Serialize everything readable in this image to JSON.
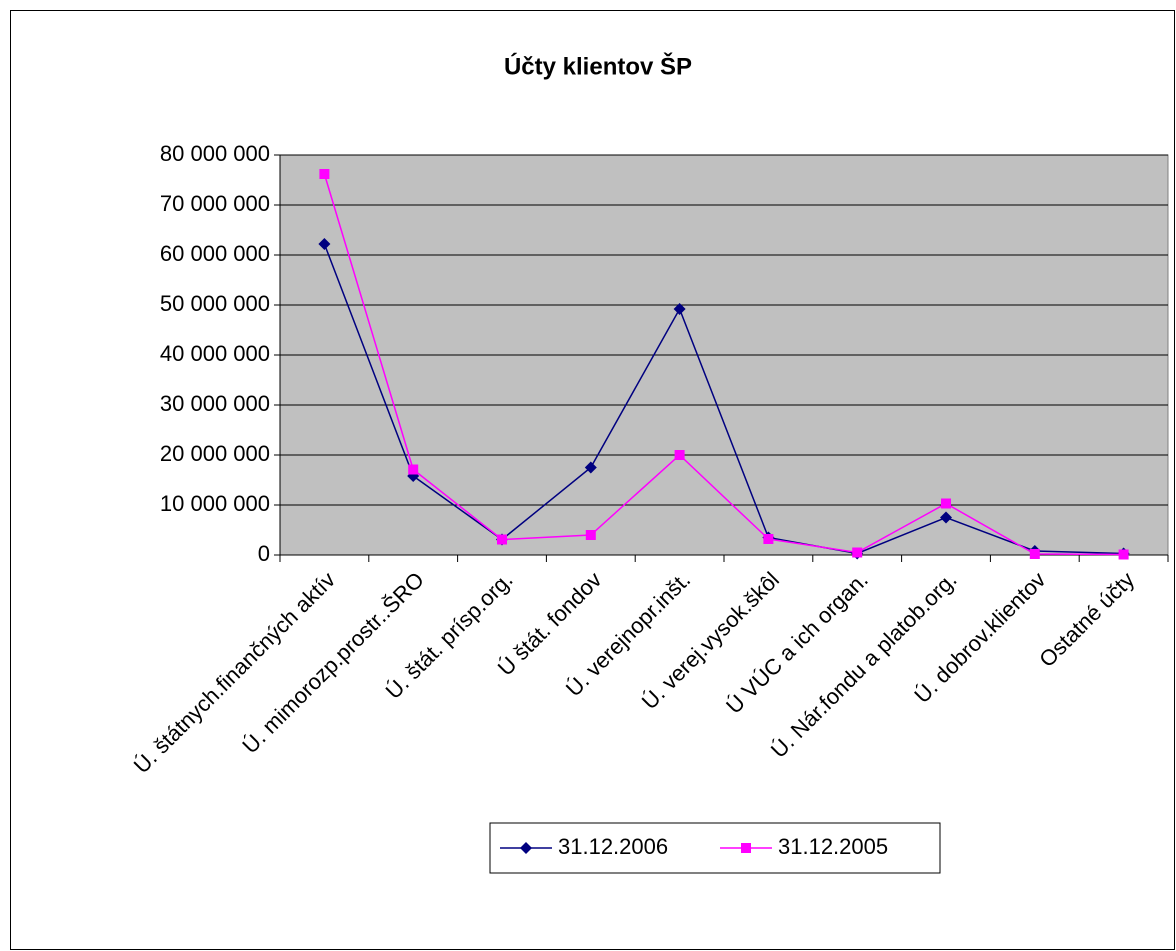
{
  "chart_data": {
    "type": "line",
    "title": "Účty klientov ŠP",
    "categories": [
      "Ú. štátnych.finančných aktív",
      "Ú. mimorozp.prostr..ŠRO",
      "Ú. štát. prísp.org.",
      "Ú štát. fondov",
      "Ú. verejnopr.inšt.",
      "Ú. verej.vysok.škôl",
      "Ú VÚC a ich organ.",
      "Ú. Nár.fondu a platob.org.",
      "Ú. dobrov.klientov",
      "Ostatné účty"
    ],
    "series": [
      {
        "name": "31.12.2006",
        "color": "#000080",
        "marker": "diamond",
        "values": [
          62200000,
          15800000,
          3100000,
          17500000,
          49200000,
          3500000,
          300000,
          7500000,
          800000,
          300000
        ]
      },
      {
        "name": "31.12.2005",
        "color": "#ff00ff",
        "marker": "square",
        "values": [
          76200000,
          17100000,
          3100000,
          4000000,
          20000000,
          3200000,
          500000,
          10300000,
          200000,
          100000
        ]
      }
    ],
    "ylim": [
      0,
      80000000
    ],
    "yticks": [
      {
        "value": 0,
        "label": "0"
      },
      {
        "value": 10000000,
        "label": "10 000 000"
      },
      {
        "value": 20000000,
        "label": "20 000 000"
      },
      {
        "value": 30000000,
        "label": "30 000 000"
      },
      {
        "value": 40000000,
        "label": "40 000 000"
      },
      {
        "value": 50000000,
        "label": "50 000 000"
      },
      {
        "value": 60000000,
        "label": "60 000 000"
      },
      {
        "value": 70000000,
        "label": "70 000 000"
      },
      {
        "value": 80000000,
        "label": "80 000 000"
      }
    ],
    "grid": true,
    "legend": "bottom",
    "plot_background": "#c0c0c0"
  }
}
